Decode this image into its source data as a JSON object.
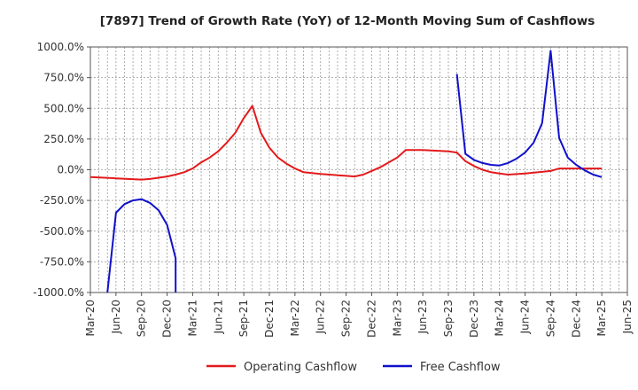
{
  "chart_data": {
    "type": "line",
    "title": "[7897]  Trend of Growth Rate (YoY) of 12-Month Moving Sum of Cashflows",
    "xlabel": "",
    "ylabel": "",
    "ylim": [
      -1000,
      1000
    ],
    "y_ticks": [
      1000,
      750,
      500,
      250,
      0,
      -250,
      -500,
      -750,
      -1000
    ],
    "y_tick_labels": [
      "1000.0%",
      "750.0%",
      "500.0%",
      "250.0%",
      "0.0%",
      "-250.0%",
      "-500.0%",
      "-750.0%",
      "-1000.0%"
    ],
    "x_start": "2020-03",
    "x_end": "2025-06",
    "x_ticks": [
      "2020-03",
      "2020-06",
      "2020-09",
      "2020-12",
      "2021-03",
      "2021-06",
      "2021-09",
      "2021-12",
      "2022-03",
      "2022-06",
      "2022-09",
      "2022-12",
      "2023-03",
      "2023-06",
      "2023-09",
      "2023-12",
      "2024-03",
      "2024-06",
      "2024-09",
      "2024-12",
      "2025-03",
      "2025-06"
    ],
    "x_tick_labels": [
      "Mar-20",
      "Jun-20",
      "Sep-20",
      "Dec-20",
      "Mar-21",
      "Jun-21",
      "Sep-21",
      "Dec-21",
      "Mar-22",
      "Jun-22",
      "Sep-22",
      "Dec-22",
      "Mar-23",
      "Jun-23",
      "Sep-23",
      "Dec-23",
      "Mar-24",
      "Jun-24",
      "Sep-24",
      "Dec-24",
      "Mar-25",
      "Jun-25"
    ],
    "grid": true,
    "legend_position": "bottom-center",
    "series": [
      {
        "name": "Operating Cashflow",
        "color": "#e31a1c",
        "points": [
          [
            "2020-03",
            -60
          ],
          [
            "2020-06",
            -70
          ],
          [
            "2020-09",
            -80
          ],
          [
            "2020-10",
            -75
          ],
          [
            "2020-12",
            -55
          ],
          [
            "2021-01",
            -40
          ],
          [
            "2021-02",
            -20
          ],
          [
            "2021-03",
            10
          ],
          [
            "2021-04",
            60
          ],
          [
            "2021-05",
            100
          ],
          [
            "2021-06",
            150
          ],
          [
            "2021-07",
            220
          ],
          [
            "2021-08",
            300
          ],
          [
            "2021-09",
            420
          ],
          [
            "2021-10",
            520
          ],
          [
            "2021-11",
            300
          ],
          [
            "2021-12",
            180
          ],
          [
            "2022-01",
            100
          ],
          [
            "2022-02",
            50
          ],
          [
            "2022-03",
            10
          ],
          [
            "2022-04",
            -20
          ],
          [
            "2022-06",
            -35
          ],
          [
            "2022-09",
            -50
          ],
          [
            "2022-10",
            -55
          ],
          [
            "2022-11",
            -40
          ],
          [
            "2022-12",
            -10
          ],
          [
            "2023-01",
            20
          ],
          [
            "2023-02",
            60
          ],
          [
            "2023-03",
            100
          ],
          [
            "2023-04",
            160
          ],
          [
            "2023-06",
            160
          ],
          [
            "2023-09",
            150
          ],
          [
            "2023-10",
            140
          ],
          [
            "2023-11",
            70
          ],
          [
            "2023-12",
            30
          ],
          [
            "2024-01",
            0
          ],
          [
            "2024-02",
            -20
          ],
          [
            "2024-03",
            -30
          ],
          [
            "2024-04",
            -40
          ],
          [
            "2024-06",
            -30
          ],
          [
            "2024-09",
            -10
          ],
          [
            "2024-10",
            10
          ],
          [
            "2024-12",
            10
          ],
          [
            "2025-03",
            10
          ]
        ]
      },
      {
        "name": "Free Cashflow",
        "color": "#1010cc",
        "segments": [
          [
            [
              "2020-05",
              -1000
            ],
            [
              "2020-06",
              -350
            ],
            [
              "2020-07",
              -280
            ],
            [
              "2020-08",
              -250
            ],
            [
              "2020-09",
              -240
            ],
            [
              "2020-10",
              -270
            ],
            [
              "2020-11",
              -330
            ],
            [
              "2020-12",
              -450
            ],
            [
              "2021-01",
              -720
            ],
            [
              "2021-01",
              -1000
            ]
          ],
          [
            [
              "2023-10",
              780
            ],
            [
              "2023-11",
              130
            ],
            [
              "2023-12",
              80
            ],
            [
              "2024-01",
              55
            ],
            [
              "2024-02",
              40
            ],
            [
              "2024-03",
              35
            ],
            [
              "2024-04",
              55
            ],
            [
              "2024-05",
              90
            ],
            [
              "2024-06",
              140
            ],
            [
              "2024-07",
              220
            ],
            [
              "2024-08",
              380
            ],
            [
              "2024-09",
              970
            ],
            [
              "2024-10",
              260
            ],
            [
              "2024-11",
              100
            ],
            [
              "2024-12",
              40
            ],
            [
              "2025-01",
              -5
            ],
            [
              "2025-02",
              -40
            ],
            [
              "2025-03",
              -60
            ]
          ]
        ]
      }
    ]
  }
}
